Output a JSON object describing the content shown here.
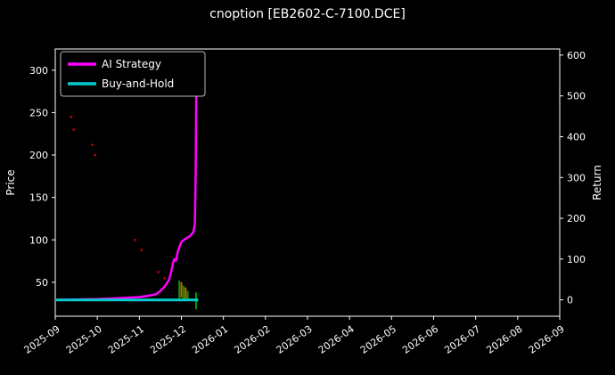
{
  "chart_data": {
    "type": "line",
    "title": "cnoption [EB2602-C-7100.DCE]",
    "left_axis": {
      "label": "Price",
      "ticks": [
        50,
        100,
        150,
        200,
        250,
        300
      ],
      "range": [
        10,
        325
      ]
    },
    "right_axis": {
      "label": "Return",
      "ticks": [
        0,
        100,
        200,
        300,
        400,
        500,
        600
      ],
      "range": [
        -40,
        615
      ]
    },
    "x_axis": {
      "tick_labels": [
        "2025-09",
        "2025-10",
        "2025-11",
        "2025-12",
        "2026-01",
        "2026-02",
        "2026-03",
        "2026-04",
        "2026-05",
        "2026-06",
        "2026-07",
        "2026-08",
        "2026-09"
      ],
      "range": [
        0,
        12
      ]
    },
    "legend": [
      {
        "label": "AI Strategy",
        "color": "#ff00ff"
      },
      {
        "label": "Buy-and-Hold",
        "color": "#00cdcd"
      }
    ],
    "series": [
      {
        "name": "AI Strategy",
        "color": "#ff00ff",
        "axis": "right",
        "width": 2.5,
        "x": [
          0,
          0.5,
          1,
          1.5,
          2,
          2.2,
          2.4,
          2.5,
          2.6,
          2.7,
          2.75,
          2.8,
          2.83,
          2.87,
          2.92,
          3.0,
          3.1,
          3.2,
          3.28,
          3.32,
          3.34,
          3.35,
          3.36
        ],
        "y": [
          0,
          1,
          2,
          4,
          7,
          10,
          14,
          22,
          32,
          48,
          65,
          90,
          100,
          96,
          120,
          142,
          150,
          156,
          165,
          185,
          300,
          450,
          588
        ]
      },
      {
        "name": "Buy-and-Hold",
        "color": "#00cdcd",
        "axis": "right",
        "width": 3,
        "x": [
          0,
          3.4
        ],
        "y": [
          0,
          0
        ]
      }
    ],
    "scatter": {
      "name": "price-dots",
      "color": "#cc0000",
      "axis": "left",
      "radius": 1.3,
      "points": [
        [
          0.38,
          245
        ],
        [
          0.44,
          230
        ],
        [
          0.88,
          212
        ],
        [
          0.95,
          200
        ],
        [
          1.9,
          100
        ],
        [
          2.05,
          88
        ],
        [
          2.45,
          62
        ],
        [
          2.6,
          55
        ]
      ]
    },
    "candles": {
      "axis": "left",
      "items": [
        {
          "x": 2.95,
          "lo": 30,
          "hi": 52,
          "color": "#009900"
        },
        {
          "x": 3.0,
          "lo": 32,
          "hi": 50,
          "color": "#cc6600"
        },
        {
          "x": 3.05,
          "lo": 30,
          "hi": 46,
          "color": "#009900"
        },
        {
          "x": 3.1,
          "lo": 31,
          "hi": 44,
          "color": "#cc6600"
        },
        {
          "x": 3.15,
          "lo": 30,
          "hi": 40,
          "color": "#009900"
        },
        {
          "x": 3.35,
          "lo": 18,
          "hi": 38,
          "color": "#009900"
        }
      ]
    },
    "colors": {
      "background": "#000000",
      "foreground": "#ffffff"
    }
  }
}
